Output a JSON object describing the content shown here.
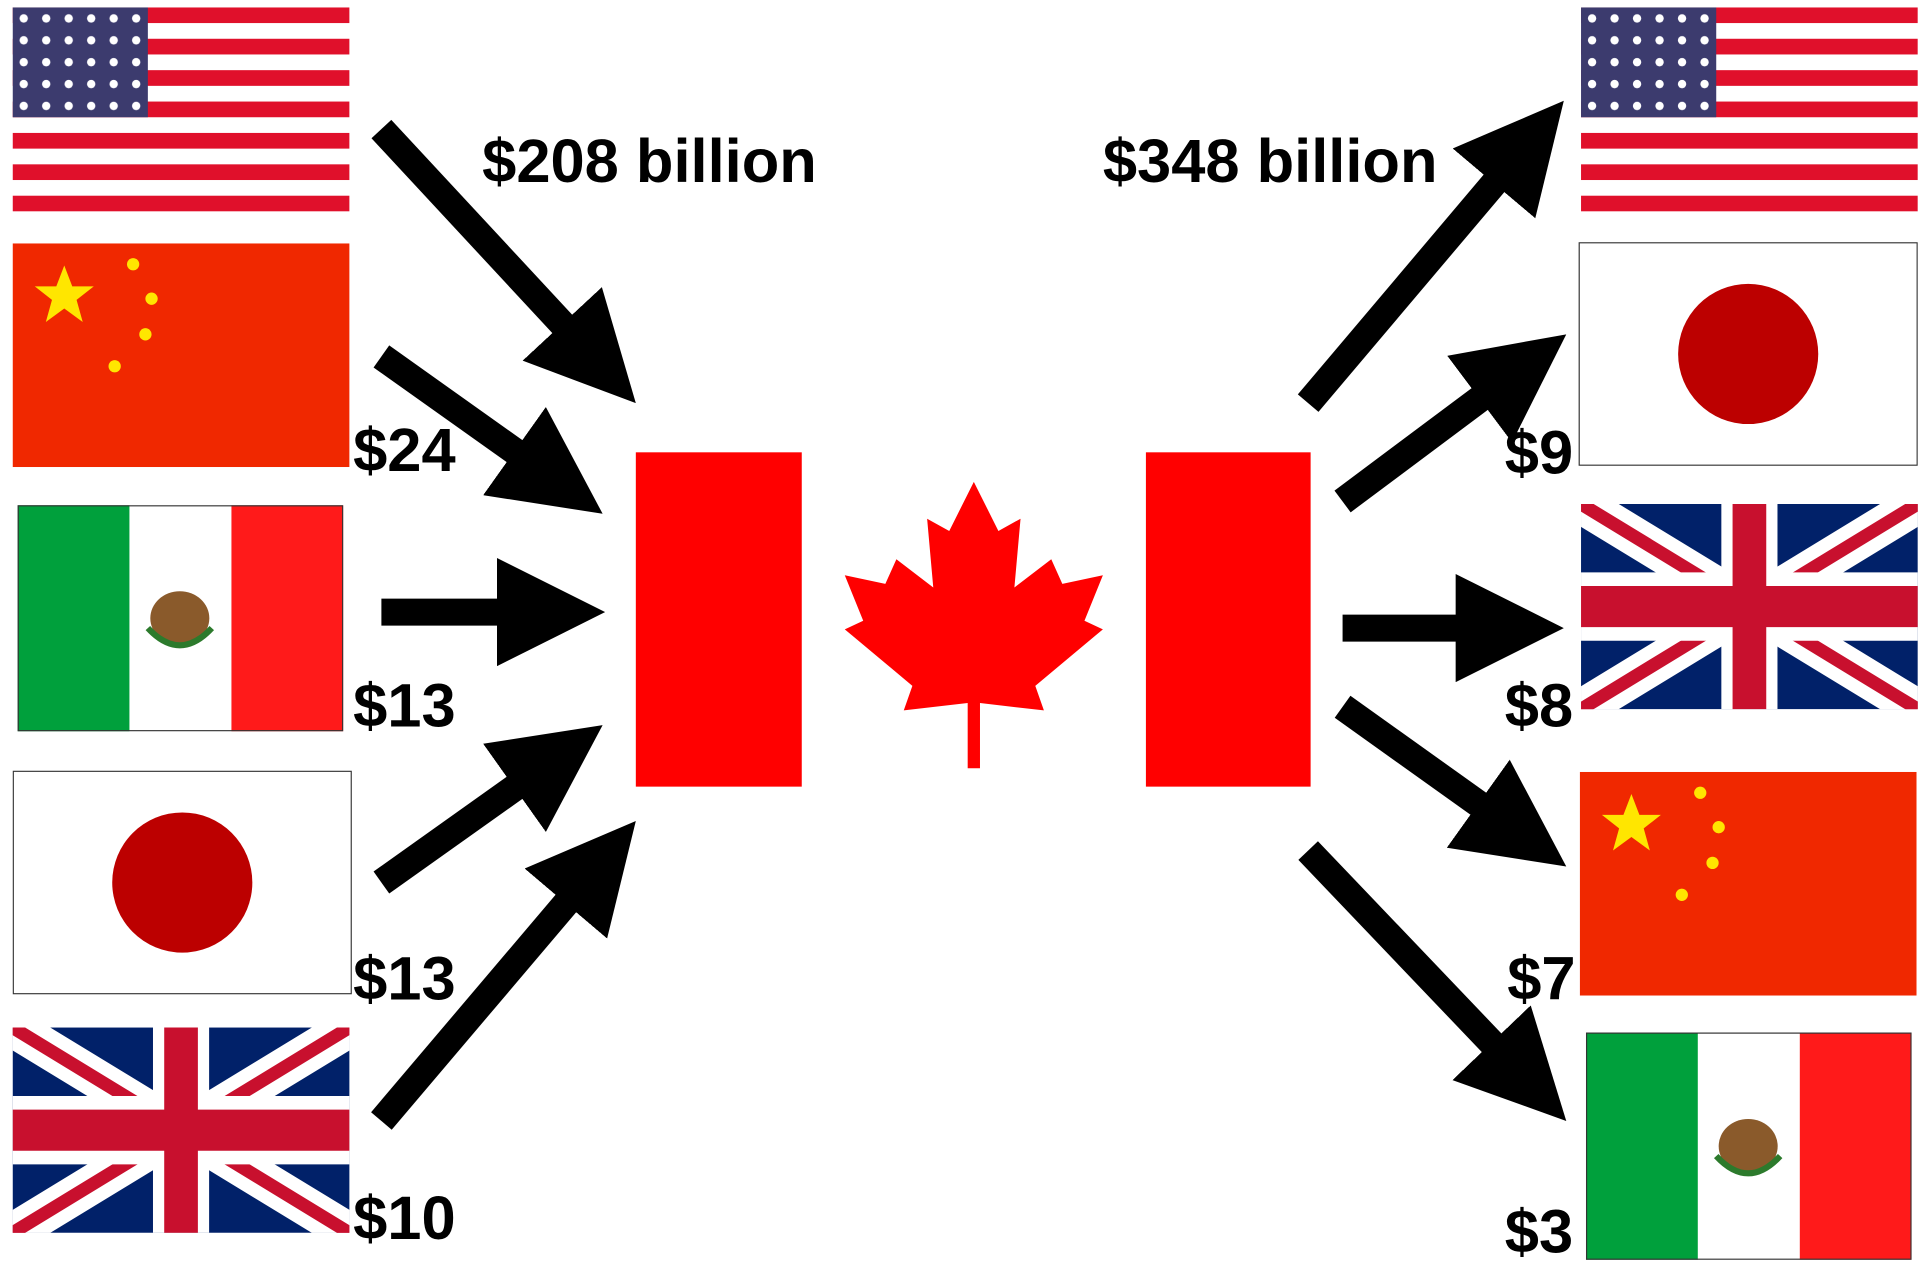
{
  "imports": {
    "labels": [
      "$208 billion",
      "$24",
      "$13",
      "$13",
      "$10"
    ]
  },
  "exports": {
    "labels": [
      "$348 billion",
      "$9",
      "$8",
      "$7",
      "$3"
    ]
  }
}
